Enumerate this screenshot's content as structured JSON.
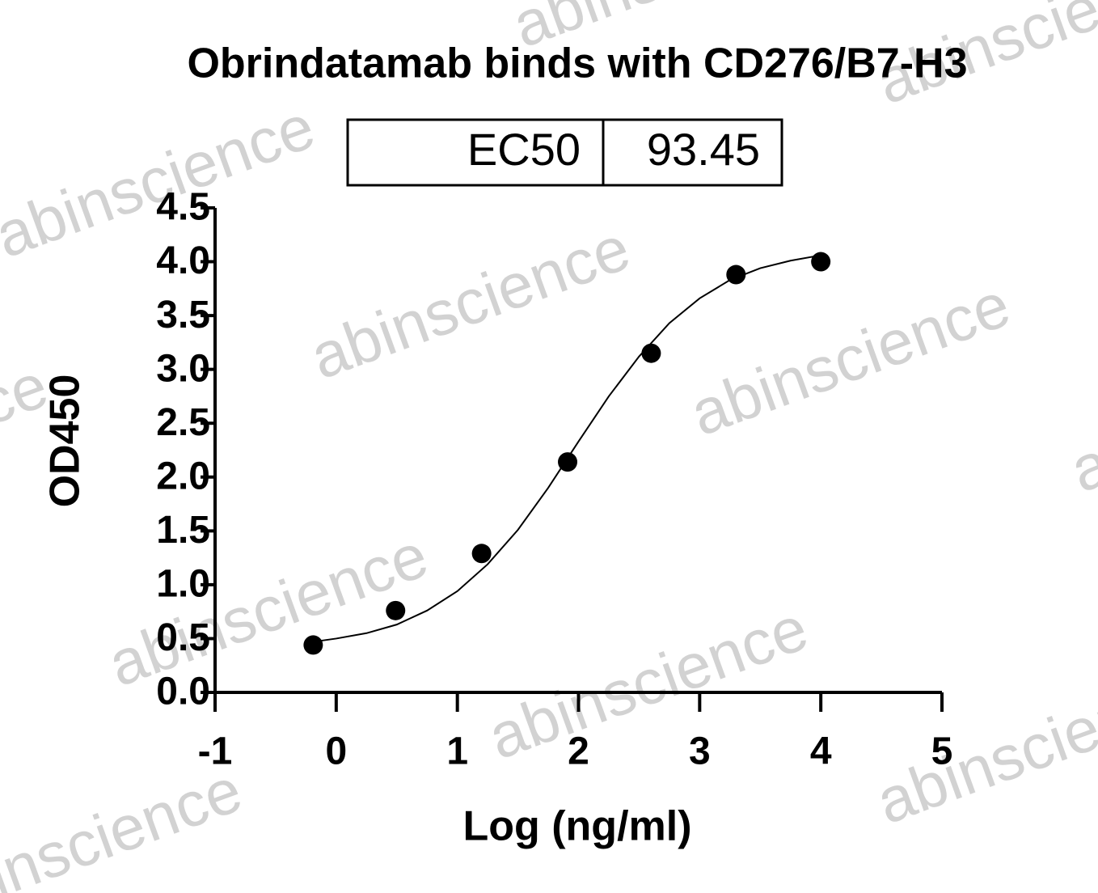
{
  "chart_data": {
    "type": "scatter",
    "title": "Obrindatamab binds with CD276/B7-H3",
    "watermark": "abinscience",
    "ec50_table": {
      "label": "EC50",
      "value": "93.45"
    },
    "xlabel": "Log (ng/ml)",
    "ylabel": "OD450",
    "series": [
      {
        "color": "#000000",
        "x": [
          -0.19,
          0.49,
          1.2,
          1.91,
          2.6,
          3.3,
          4.0
        ],
        "values": [
          0.44,
          0.76,
          1.29,
          2.14,
          3.15,
          3.88,
          4.0
        ]
      }
    ],
    "fit": {
      "color": "#000000",
      "x": [
        -0.19,
        0,
        0.25,
        0.5,
        0.75,
        1.0,
        1.25,
        1.5,
        1.75,
        2.0,
        2.25,
        2.5,
        2.75,
        3.0,
        3.25,
        3.5,
        3.75,
        4.0
      ],
      "values": [
        0.47,
        0.5,
        0.55,
        0.63,
        0.76,
        0.94,
        1.19,
        1.51,
        1.9,
        2.33,
        2.75,
        3.12,
        3.43,
        3.66,
        3.83,
        3.94,
        4.01,
        4.06
      ]
    },
    "xlim": [
      -1,
      5
    ],
    "xticks": [
      -1,
      0,
      1,
      2,
      3,
      4,
      5
    ],
    "ylim": [
      0,
      4.5
    ],
    "yticks": [
      {
        "value": 0,
        "label": "0.0"
      },
      0.5,
      {
        "value": 1,
        "label": "1.0"
      },
      1.5,
      {
        "value": 2,
        "label": "2.0"
      },
      2.5,
      {
        "value": 3,
        "label": "3.0"
      },
      3.5,
      {
        "value": 4,
        "label": "4.0"
      },
      4.5
    ],
    "grid": false
  }
}
